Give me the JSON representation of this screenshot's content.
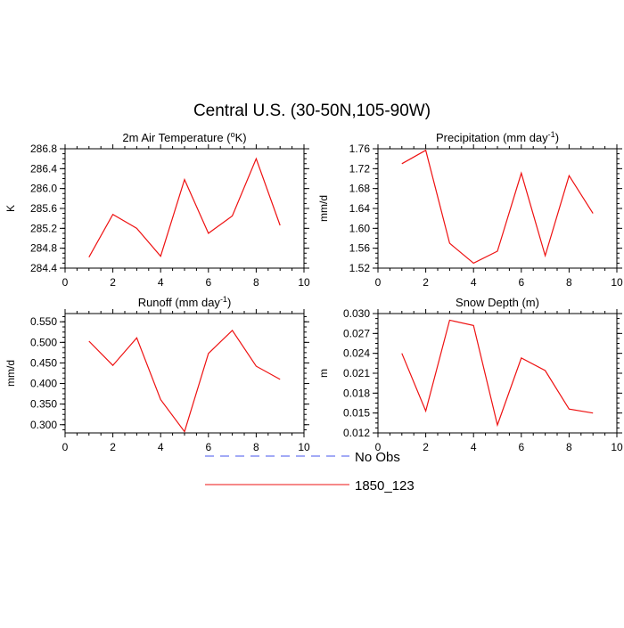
{
  "figure": {
    "title": "Central U.S. (30-50N,105-90W)"
  },
  "legend": {
    "items": [
      {
        "label": "No Obs",
        "color": "#4455ee",
        "style": "dashed"
      },
      {
        "label": "1850_123",
        "color": "#ee1111",
        "style": "solid"
      }
    ]
  },
  "chart_data": [
    {
      "type": "line",
      "title": "2m Air Temperature (°K)",
      "title_main": "2m Air Temperature (",
      "title_sup": "o",
      "title_tail": "K)",
      "xlabel": "",
      "ylabel": "K",
      "xlim": [
        0,
        10
      ],
      "ylim": [
        284.4,
        286.8
      ],
      "xticks": [
        0,
        2,
        4,
        6,
        8,
        10
      ],
      "yticks": [
        "284.4",
        "284.8",
        "285.2",
        "285.6",
        "286.0",
        "286.4",
        "286.8"
      ],
      "series": [
        {
          "name": "1850_123",
          "color": "#ee1111",
          "x": [
            1,
            2,
            3,
            4,
            5,
            6,
            7,
            8,
            9
          ],
          "y": [
            284.62,
            285.48,
            285.2,
            284.64,
            286.18,
            285.1,
            285.45,
            286.6,
            285.26
          ]
        }
      ]
    },
    {
      "type": "line",
      "title": "Precipitation (mm day-1)",
      "title_main": "Precipitation (mm day",
      "title_sup": "-1",
      "title_tail": ")",
      "xlabel": "",
      "ylabel": "mm/d",
      "xlim": [
        0,
        10
      ],
      "ylim": [
        1.52,
        1.76
      ],
      "xticks": [
        0,
        2,
        4,
        6,
        8,
        10
      ],
      "yticks": [
        "1.52",
        "1.56",
        "1.60",
        "1.64",
        "1.68",
        "1.72",
        "1.76"
      ],
      "series": [
        {
          "name": "1850_123",
          "color": "#ee1111",
          "x": [
            1,
            2,
            3,
            4,
            5,
            6,
            7,
            8,
            9
          ],
          "y": [
            1.73,
            1.757,
            1.57,
            1.53,
            1.554,
            1.711,
            1.545,
            1.706,
            1.63
          ]
        }
      ]
    },
    {
      "type": "line",
      "title": "Runoff (mm day-1)",
      "title_main": "Runoff (mm day",
      "title_sup": "-1",
      "title_tail": ")",
      "xlabel": "",
      "ylabel": "mm/d",
      "xlim": [
        0,
        10
      ],
      "ylim": [
        0.28,
        0.57
      ],
      "xticks": [
        0,
        2,
        4,
        6,
        8,
        10
      ],
      "yticks": [
        "0.300",
        "0.350",
        "0.400",
        "0.450",
        "0.500",
        "0.550"
      ],
      "series": [
        {
          "name": "1850_123",
          "color": "#ee1111",
          "x": [
            1,
            2,
            3,
            4,
            5,
            6,
            7,
            8,
            9
          ],
          "y": [
            0.503,
            0.444,
            0.511,
            0.361,
            0.283,
            0.473,
            0.529,
            0.442,
            0.41
          ]
        }
      ]
    },
    {
      "type": "line",
      "title": "Snow Depth (m)",
      "title_main": "Snow Depth (m)",
      "title_sup": "",
      "title_tail": "",
      "xlabel": "",
      "ylabel": "m",
      "xlim": [
        0,
        10
      ],
      "ylim": [
        0.012,
        0.03
      ],
      "xticks": [
        0,
        2,
        4,
        6,
        8,
        10
      ],
      "yticks": [
        "0.012",
        "0.015",
        "0.018",
        "0.021",
        "0.024",
        "0.027",
        "0.030"
      ],
      "series": [
        {
          "name": "1850_123",
          "color": "#ee1111",
          "x": [
            1,
            2,
            3,
            4,
            5,
            6,
            7,
            8,
            9
          ],
          "y": [
            0.024,
            0.0153,
            0.029,
            0.0282,
            0.0132,
            0.0233,
            0.0214,
            0.0156,
            0.015
          ]
        }
      ]
    }
  ]
}
